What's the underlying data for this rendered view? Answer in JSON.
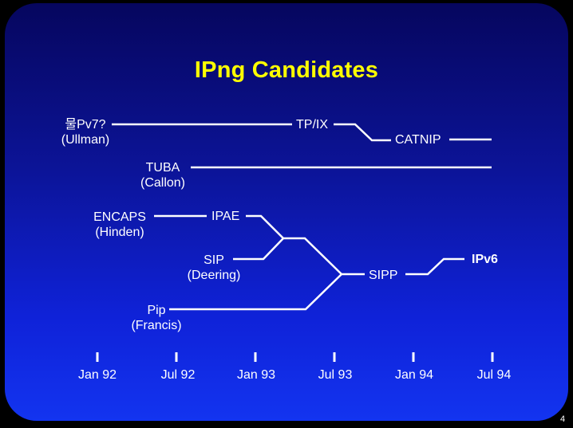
{
  "title": "IPng Candidates",
  "page_number": "4",
  "proposals": [
    {
      "name": "물Pv7?",
      "author": "(Ullman)"
    },
    {
      "name": "TUBA",
      "author": "(Callon)"
    },
    {
      "name": "ENCAPS",
      "author": "(Hinden)"
    },
    {
      "name": "SIP",
      "author": "(Deering)"
    },
    {
      "name": "Pip",
      "author": "(Francis)"
    }
  ],
  "nodes": {
    "tpix": "TP/IX",
    "catnip": "CATNIP",
    "ipae": "IPAE",
    "sipp": "SIPP",
    "ipv6": "IPv6"
  },
  "timeline": [
    "Jan 92",
    "Jul 92",
    "Jan 93",
    "Jul 93",
    "Jan 94",
    "Jul 94"
  ],
  "colors": {
    "title": "#ffff00",
    "text": "#ffffff",
    "background_top": "#06065e",
    "background_bottom": "#1334f0"
  }
}
